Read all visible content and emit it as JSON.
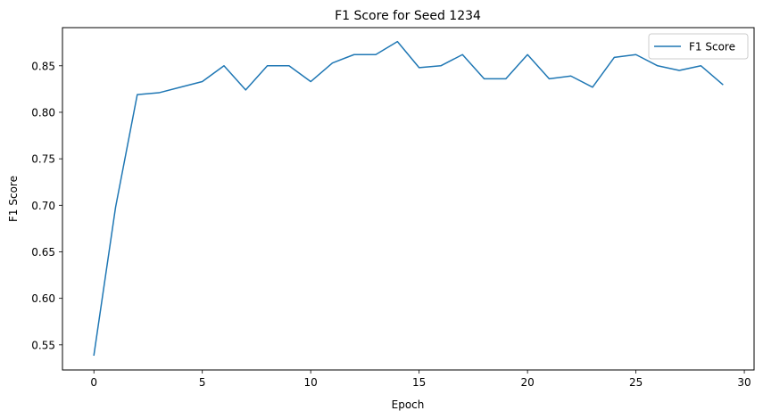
{
  "chart_data": {
    "type": "line",
    "title": "F1 Score for Seed 1234",
    "xlabel": "Epoch",
    "ylabel": "F1 Score",
    "xlim": [
      -1.45,
      30.45
    ],
    "ylim": [
      0.523,
      0.891
    ],
    "xticks": [
      0,
      5,
      10,
      15,
      20,
      25,
      30
    ],
    "yticks": [
      0.55,
      0.6,
      0.65,
      0.7,
      0.75,
      0.8,
      0.85
    ],
    "ytick_labels": [
      "0.55",
      "0.60",
      "0.65",
      "0.70",
      "0.75",
      "0.80",
      "0.85"
    ],
    "grid": false,
    "legend_position": "top-right",
    "series": [
      {
        "name": "F1 Score",
        "color": "#1f77b4",
        "x": [
          0,
          1,
          2,
          3,
          4,
          5,
          6,
          7,
          8,
          9,
          10,
          11,
          12,
          13,
          14,
          15,
          16,
          17,
          18,
          19,
          20,
          21,
          22,
          23,
          24,
          25,
          26,
          27,
          28,
          29
        ],
        "values": [
          0.539,
          0.698,
          0.819,
          0.821,
          0.827,
          0.833,
          0.85,
          0.824,
          0.85,
          0.85,
          0.833,
          0.853,
          0.862,
          0.862,
          0.876,
          0.848,
          0.85,
          0.862,
          0.836,
          0.836,
          0.862,
          0.836,
          0.839,
          0.827,
          0.859,
          0.862,
          0.85,
          0.845,
          0.85,
          0.83
        ]
      }
    ]
  }
}
